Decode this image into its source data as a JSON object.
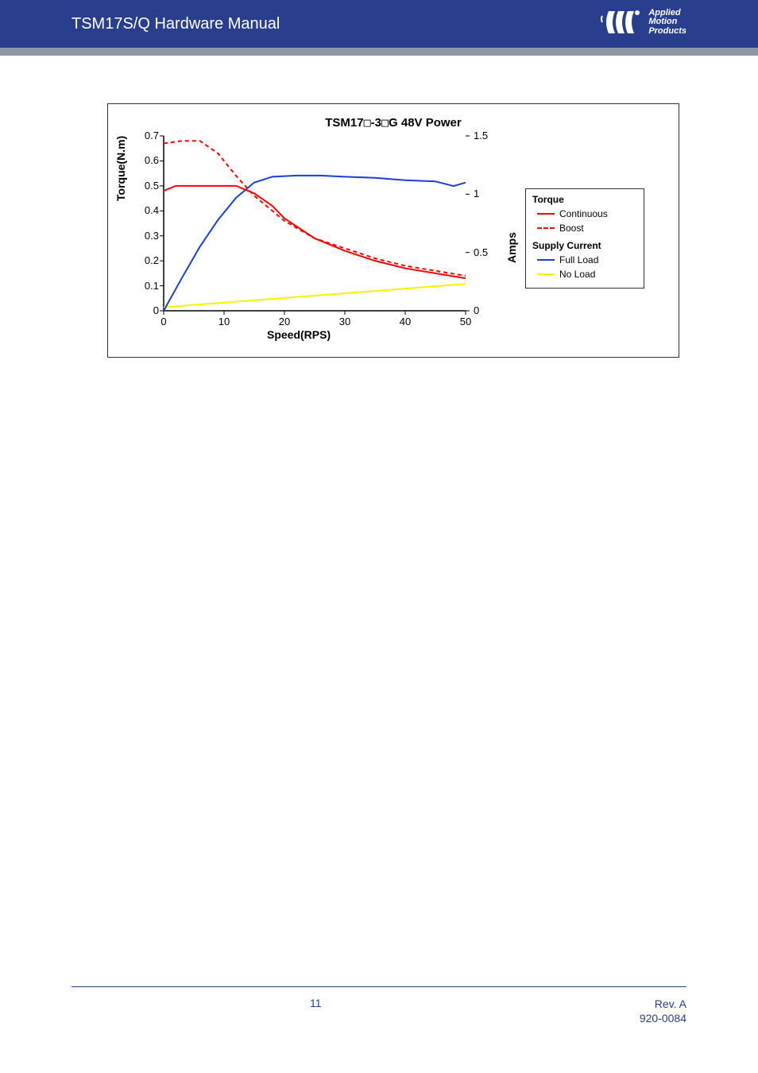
{
  "header": {
    "title": "TSM17S/Q Hardware Manual",
    "brand_line1": "Applied",
    "brand_line2": "Motion",
    "brand_line3": "Products",
    "bg_color": "#2a3e8e",
    "band_color": "#8e96a7"
  },
  "chart": {
    "title_prefix": "TSM17",
    "title_mid": "-3",
    "title_suffix": "G  48V Power",
    "x_label": "Speed(RPS)",
    "y1_label": "Torque(N.m)",
    "y2_label": "Amps",
    "xlim": [
      0,
      50
    ],
    "y1lim": [
      0,
      0.7
    ],
    "y2lim": [
      0,
      1.5
    ],
    "x_ticks": [
      0,
      10,
      20,
      30,
      40,
      50
    ],
    "y1_ticks": [
      0,
      0.1,
      0.2,
      0.3,
      0.4,
      0.5,
      0.6,
      0.7
    ],
    "y2_ticks": [
      0,
      0.5,
      1,
      1.5
    ],
    "bg": "#ffffff",
    "axis_color": "#000000",
    "tick_len": 5,
    "series": {
      "continuous": {
        "color": "#ff0000",
        "width": 2,
        "dash": "none",
        "data": [
          [
            0,
            0.48
          ],
          [
            2,
            0.5
          ],
          [
            5,
            0.5
          ],
          [
            10,
            0.5
          ],
          [
            12,
            0.5
          ],
          [
            15,
            0.47
          ],
          [
            18,
            0.42
          ],
          [
            20,
            0.37
          ],
          [
            25,
            0.29
          ],
          [
            30,
            0.24
          ],
          [
            35,
            0.2
          ],
          [
            40,
            0.17
          ],
          [
            45,
            0.15
          ],
          [
            50,
            0.13
          ]
        ]
      },
      "boost": {
        "color": "#ff0000",
        "width": 2,
        "dash": "5,4",
        "data": [
          [
            0,
            0.67
          ],
          [
            3,
            0.68
          ],
          [
            6,
            0.68
          ],
          [
            9,
            0.63
          ],
          [
            12,
            0.54
          ],
          [
            15,
            0.46
          ],
          [
            18,
            0.4
          ],
          [
            20,
            0.36
          ],
          [
            25,
            0.29
          ],
          [
            30,
            0.25
          ],
          [
            35,
            0.21
          ],
          [
            40,
            0.18
          ],
          [
            45,
            0.16
          ],
          [
            50,
            0.14
          ]
        ]
      },
      "full_load": {
        "color": "#1a3fd6",
        "width": 2,
        "dash": "none",
        "data": [
          [
            0,
            0.0
          ],
          [
            3,
            0.28
          ],
          [
            6,
            0.55
          ],
          [
            9,
            0.78
          ],
          [
            12,
            0.97
          ],
          [
            15,
            1.1
          ],
          [
            18,
            1.15
          ],
          [
            22,
            1.16
          ],
          [
            26,
            1.16
          ],
          [
            30,
            1.15
          ],
          [
            35,
            1.14
          ],
          [
            40,
            1.12
          ],
          [
            45,
            1.11
          ],
          [
            48,
            1.07
          ],
          [
            50,
            1.1
          ]
        ]
      },
      "no_load": {
        "color": "#f4f400",
        "width": 2,
        "dash": "none",
        "data": [
          [
            0,
            0.03
          ],
          [
            10,
            0.07
          ],
          [
            20,
            0.11
          ],
          [
            30,
            0.15
          ],
          [
            40,
            0.19
          ],
          [
            50,
            0.23
          ]
        ]
      }
    },
    "legend": {
      "torque_header": "Torque",
      "continuous": "Continuous",
      "boost": "Boost",
      "supply_header": "Supply Current",
      "full_load": "Full Load",
      "no_load": "No Load"
    }
  },
  "footer": {
    "page": "11",
    "rev": "Rev. A",
    "doc": "920-0084",
    "color": "#2a3e8e"
  }
}
